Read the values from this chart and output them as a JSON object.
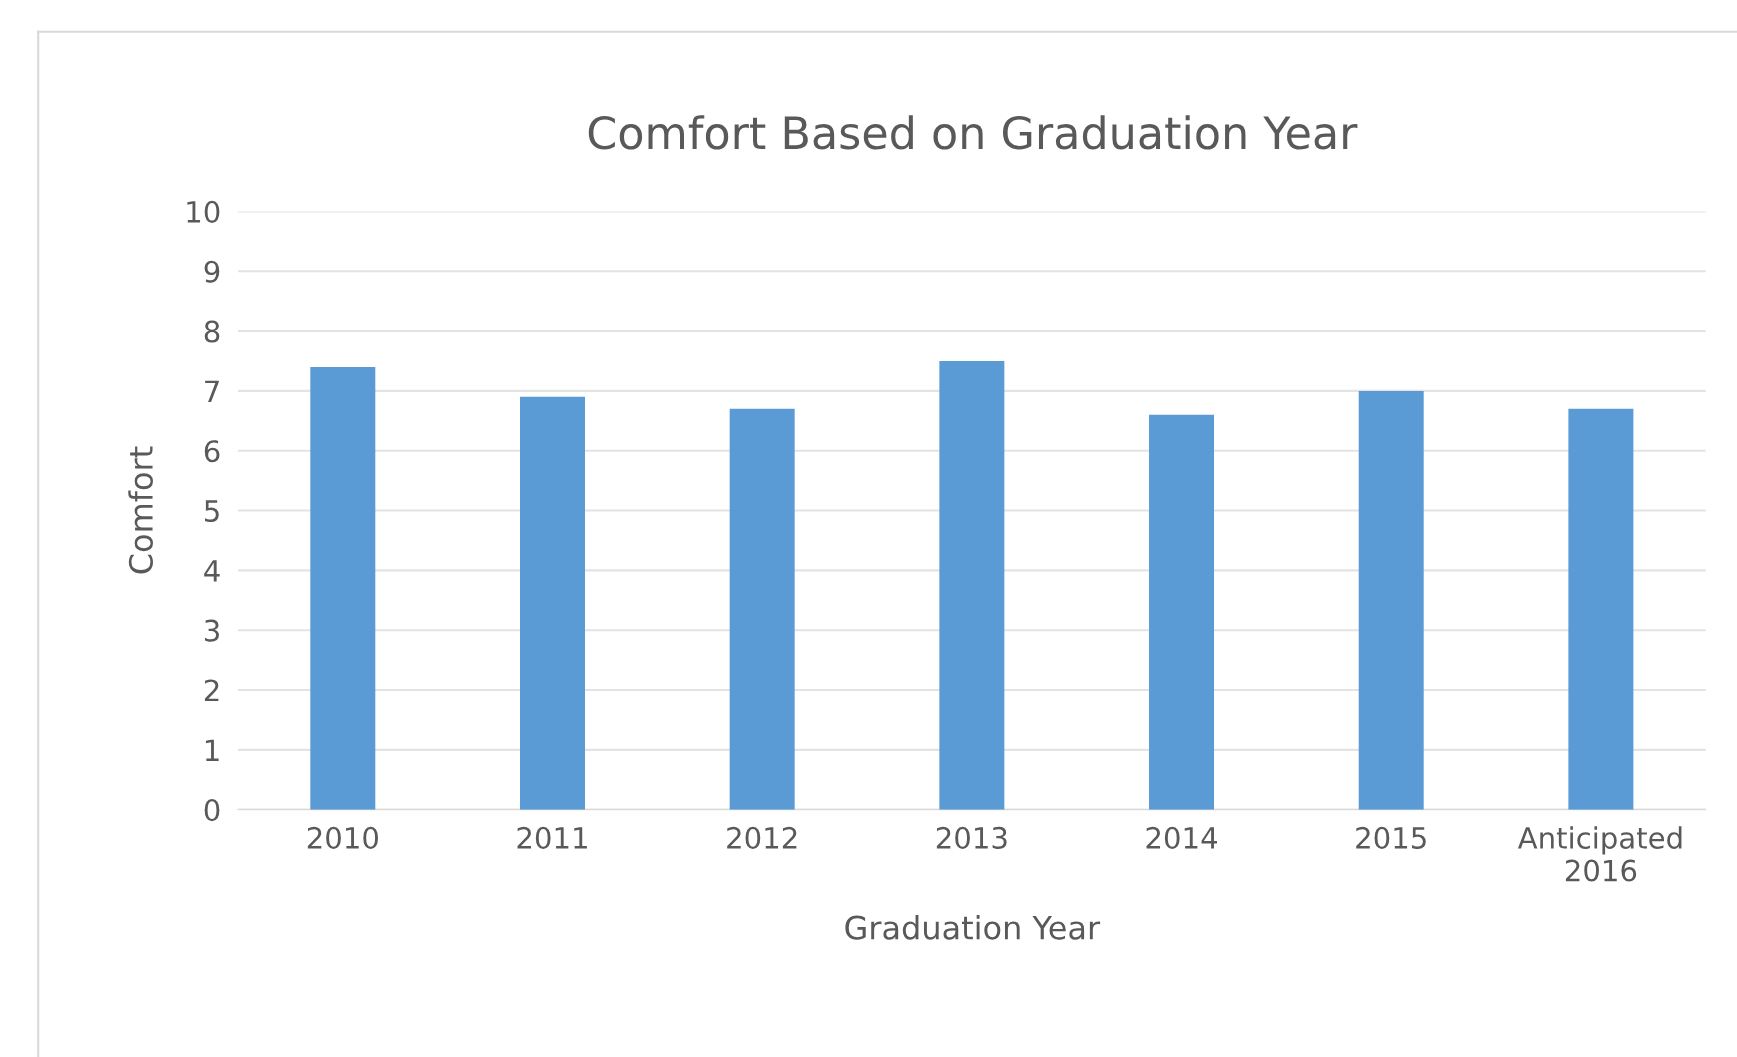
{
  "chart_data": {
    "type": "bar",
    "title": "Comfort Based on Graduation Year",
    "xlabel": "Graduation Year",
    "ylabel": "Comfort",
    "categories": [
      "2010",
      "2011",
      "2012",
      "2013",
      "2014",
      "2015",
      "Anticipated\n2016"
    ],
    "values": [
      7.4,
      6.9,
      6.7,
      7.5,
      6.6,
      7.0,
      6.7
    ],
    "color": "#5b9bd5",
    "ylim": [
      0,
      10
    ],
    "yticks": [
      0,
      1,
      2,
      3,
      4,
      5,
      6,
      7,
      8,
      9,
      10
    ],
    "grid": "y"
  }
}
